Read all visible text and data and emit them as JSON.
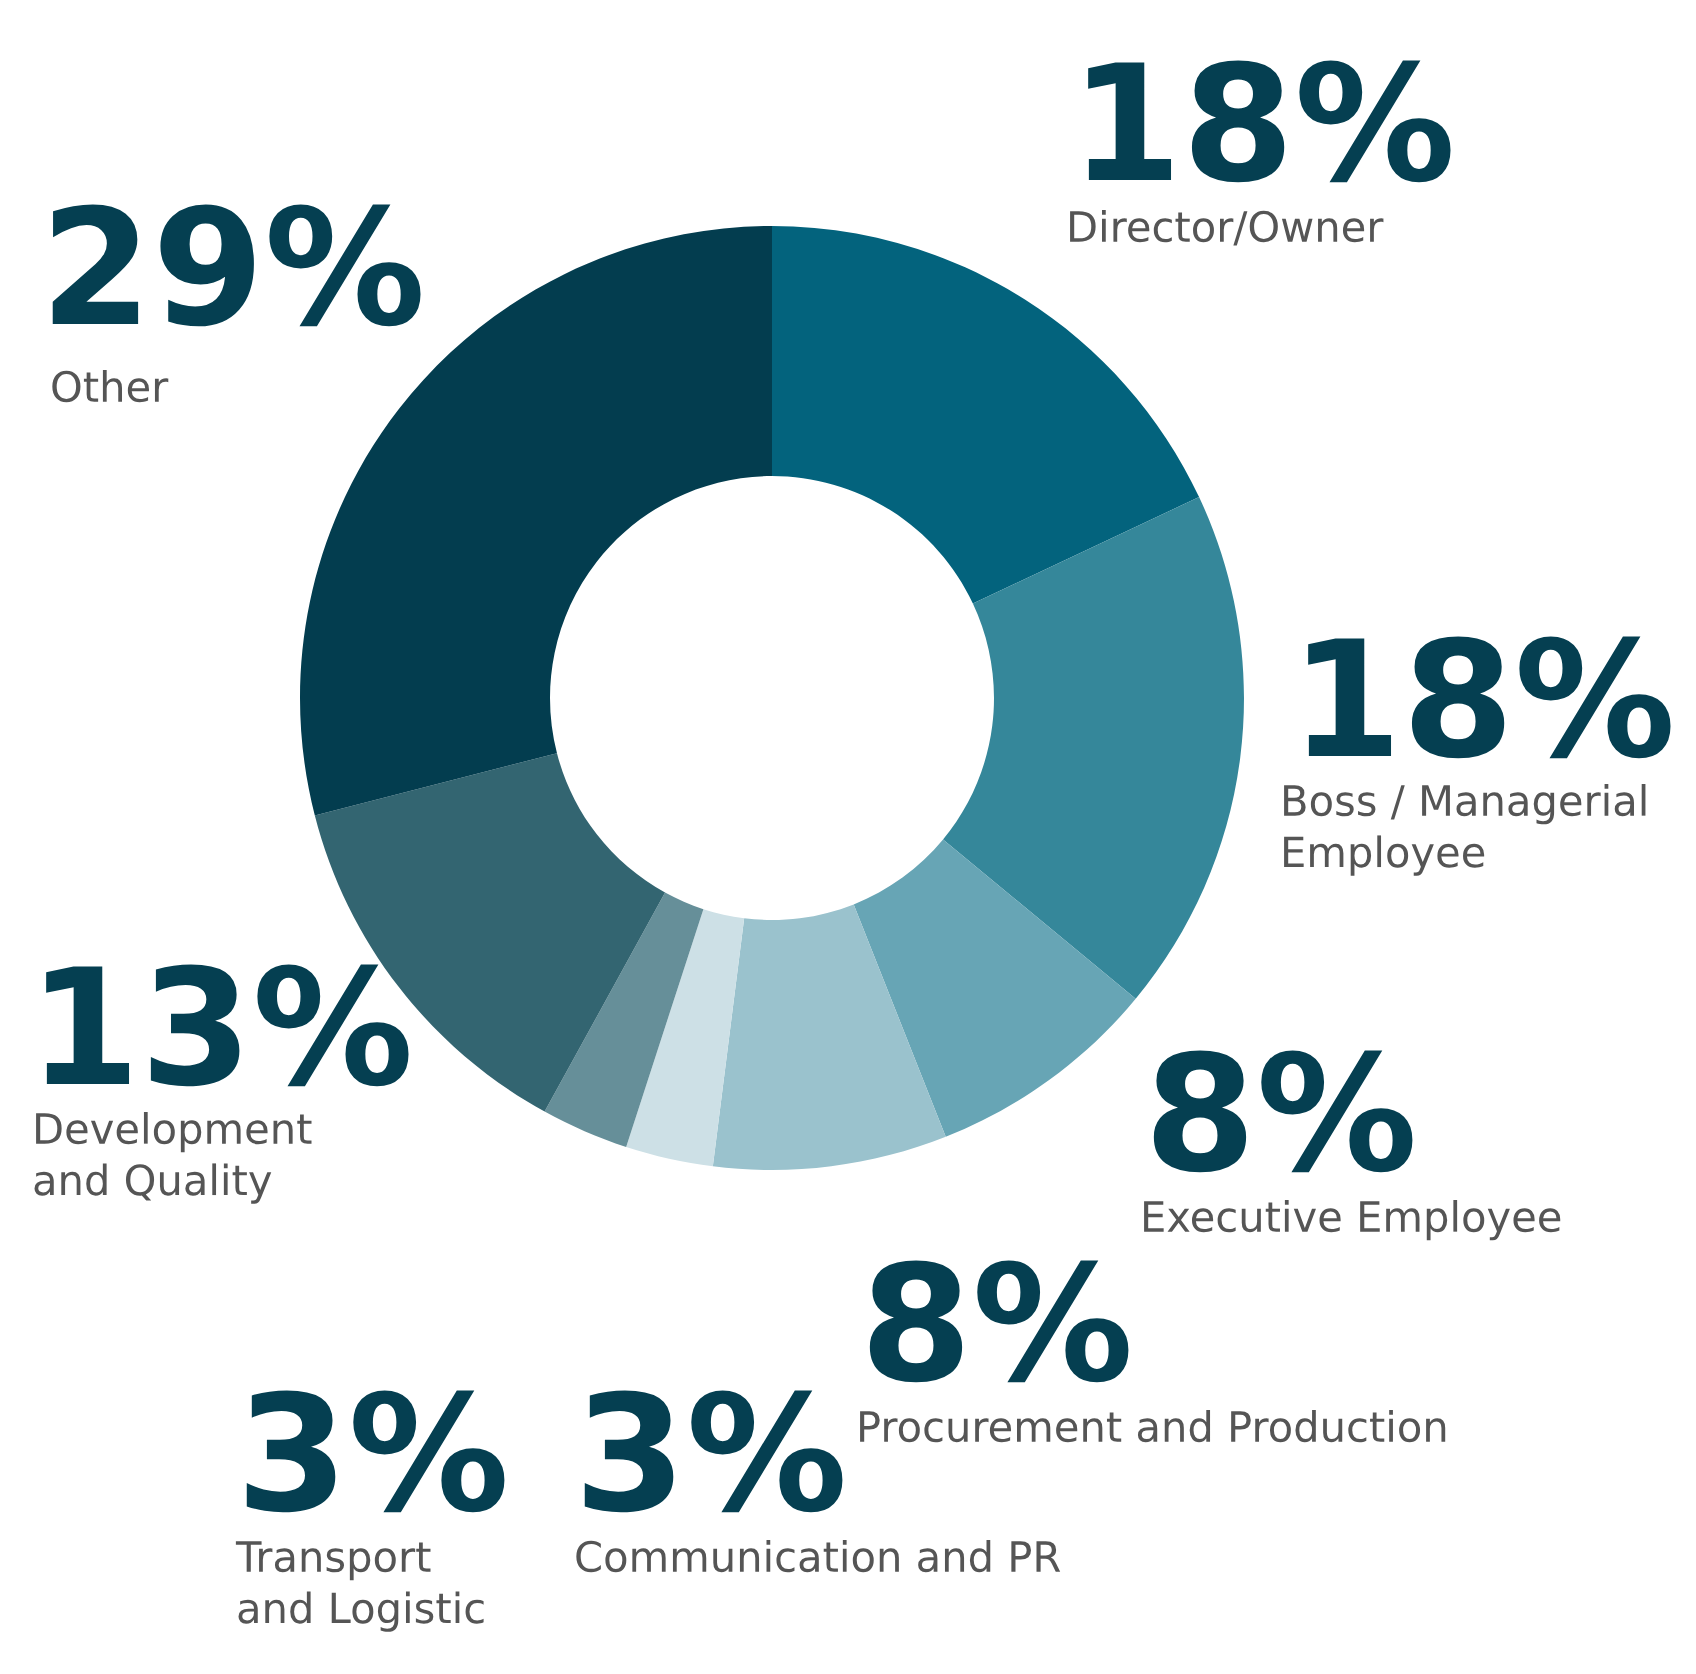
{
  "chart_data": {
    "type": "donut",
    "categories": [
      "Director/Owner",
      "Boss / Managerial\nEmployee",
      "Executive Employee",
      "Procurement and Production",
      "Communication and PR",
      "Transport\nand Logistic",
      "Development\nand Quality",
      "Other"
    ],
    "values": [
      18,
      18,
      8,
      8,
      3,
      3,
      13,
      29
    ],
    "value_labels": [
      "18%",
      "18%",
      "8%",
      "8%",
      "3%",
      "3%",
      "13%",
      "29%"
    ],
    "colors": [
      "#03637d",
      "#35879a",
      "#67a5b5",
      "#9ac2cd",
      "#cde0e6",
      "#668f99",
      "#336571",
      "#033d4f"
    ],
    "legend": false
  }
}
